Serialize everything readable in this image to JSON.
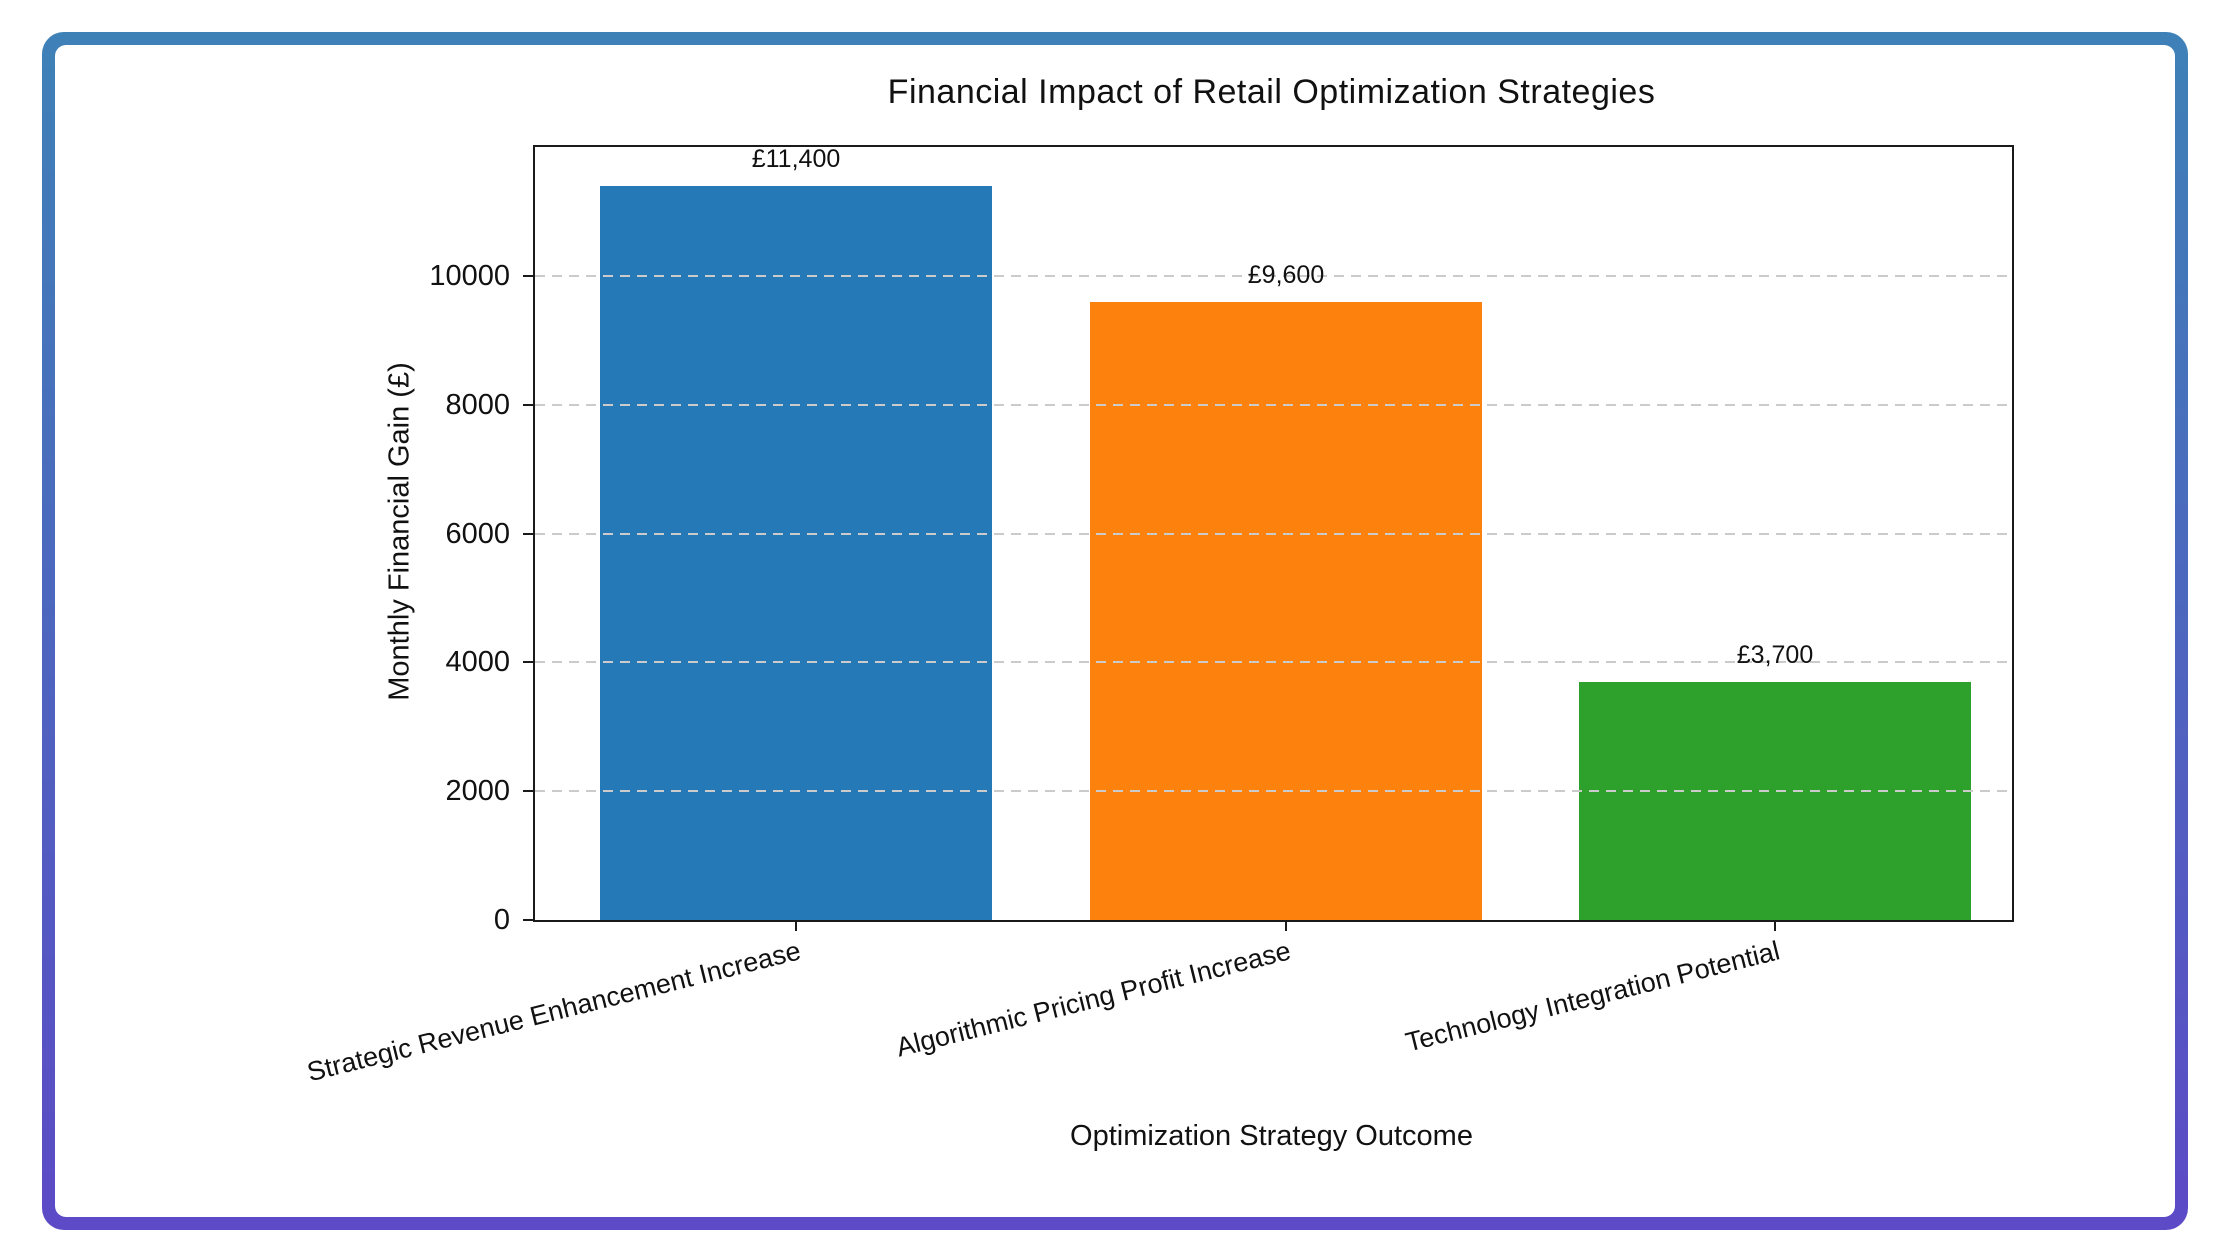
{
  "frame": {
    "gradient_top": "#3E81B7",
    "gradient_bottom": "#5C4AC6",
    "background": "#FFFFFF"
  },
  "chart_data": {
    "type": "bar",
    "title": "Financial Impact of Retail Optimization Strategies",
    "xlabel": "Optimization Strategy Outcome",
    "ylabel": "Monthly Financial Gain (£)",
    "categories": [
      "Strategic Revenue Enhancement Increase",
      "Algorithmic Pricing Profit Increase",
      "Technology Integration Potential"
    ],
    "values": [
      11400,
      9600,
      3700
    ],
    "bar_value_labels": [
      "£11,400",
      "£9,600",
      "£3,700"
    ],
    "bar_colors": [
      "#2679B7",
      "#FD810D",
      "#2EA12C"
    ],
    "ylim": [
      0,
      12000
    ],
    "yticks": [
      0,
      2000,
      4000,
      6000,
      8000,
      10000
    ],
    "grid": {
      "axis": "y",
      "style": "dashed",
      "color": "#CBCBCB",
      "above_bars": true
    },
    "legend_position": "none",
    "x_tick_rotation_deg": -14
  }
}
